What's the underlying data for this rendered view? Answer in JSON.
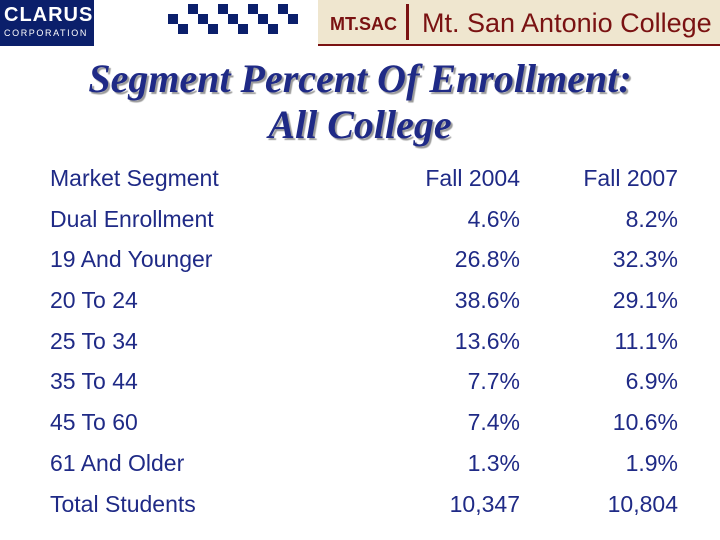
{
  "header": {
    "left_logo": {
      "name": "CLARUS",
      "subtitle": "CORPORATION"
    },
    "right_logo": {
      "short": "MT.SAC",
      "full": "Mt. San Antonio College"
    },
    "colors": {
      "title": "#1f2a86",
      "clarus_bg": "#0b1f6b",
      "college_maroon": "#7a1212",
      "college_bg": "#efe6cf"
    }
  },
  "title": {
    "line1": "Segment Percent Of Enrollment:",
    "line2": "All College"
  },
  "table": {
    "headers": [
      "Market Segment",
      "Fall 2004",
      "Fall 2007"
    ],
    "rows": [
      [
        "Dual Enrollment",
        "4.6%",
        "8.2%"
      ],
      [
        "19 And Younger",
        "26.8%",
        "32.3%"
      ],
      [
        "20 To 24",
        "38.6%",
        "29.1%"
      ],
      [
        "25 To 34",
        "13.6%",
        "11.1%"
      ],
      [
        "35 To 44",
        "7.7%",
        "6.9%"
      ],
      [
        "45 To 60",
        "7.4%",
        "10.6%"
      ],
      [
        "61 And Older",
        "1.3%",
        "1.9%"
      ],
      [
        "Total Students",
        "10,347",
        "10,804"
      ]
    ]
  }
}
